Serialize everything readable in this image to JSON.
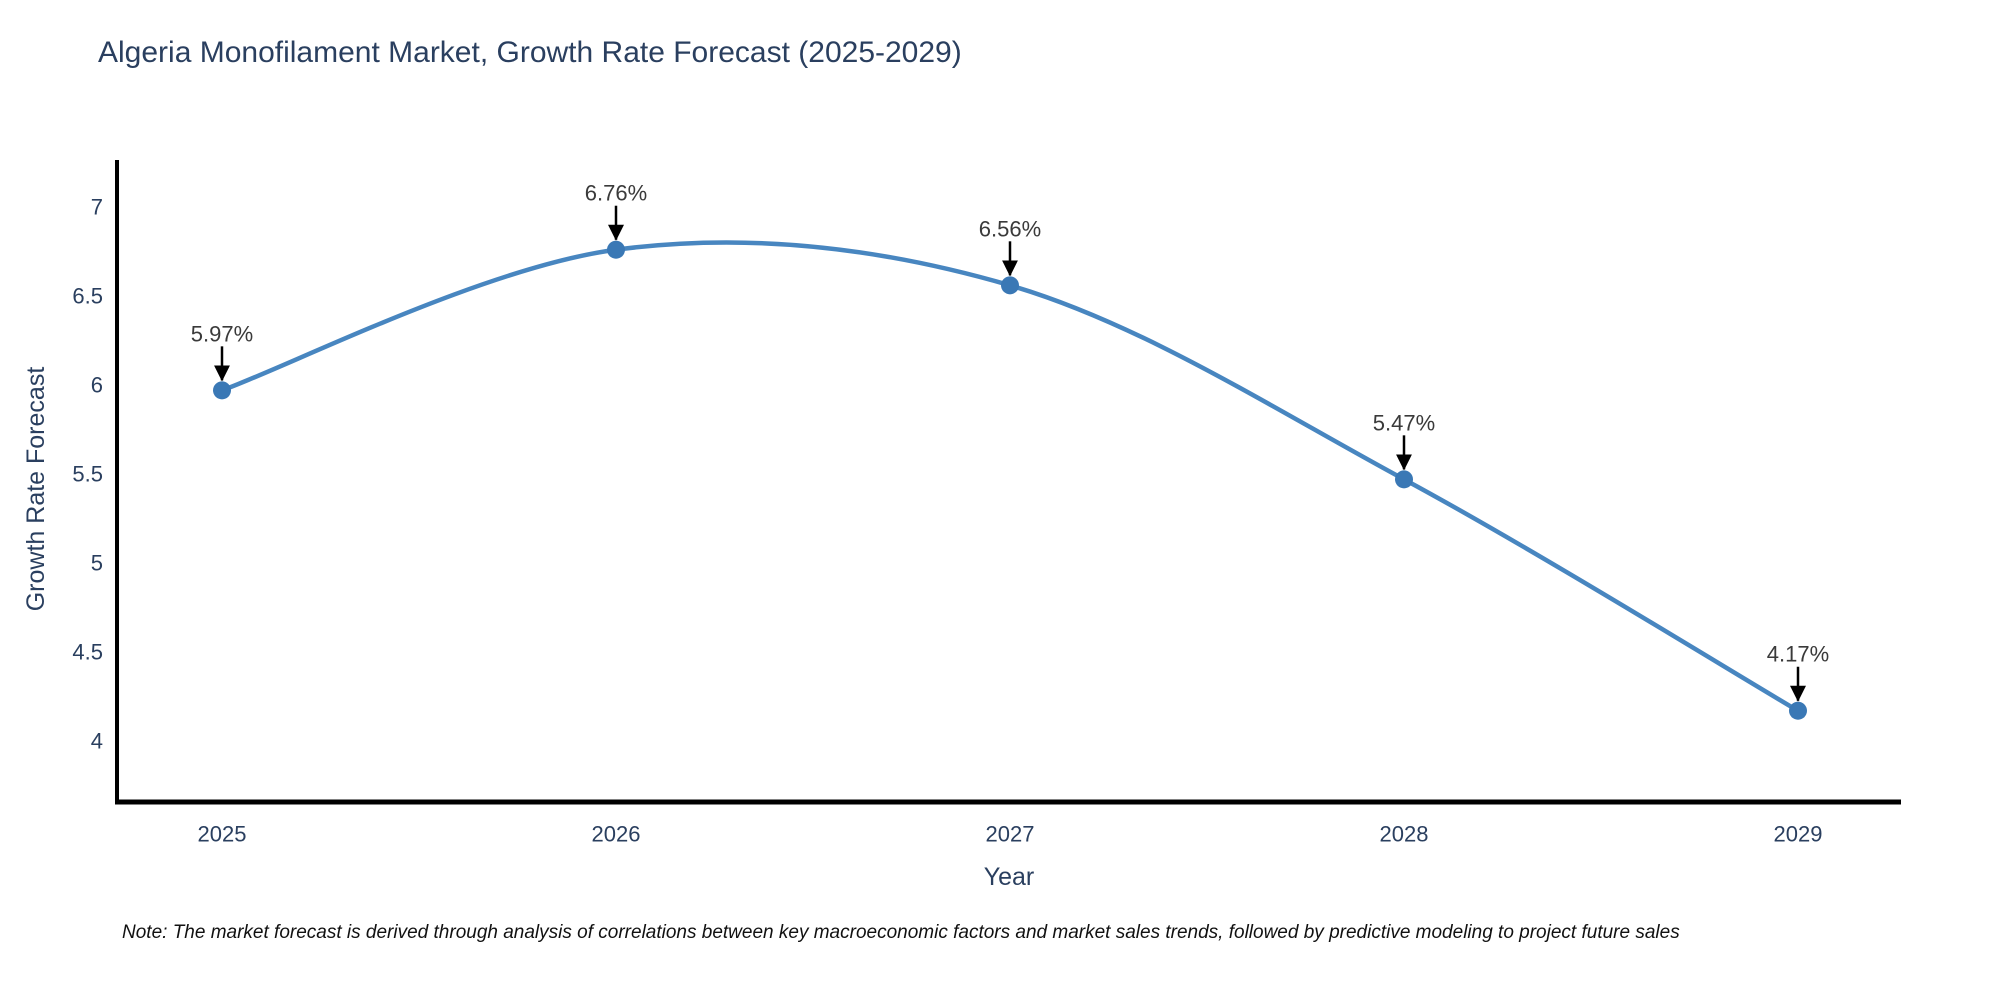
{
  "title": "Algeria Monofilament Market, Growth Rate Forecast (2025-2029)",
  "footnote": "Note: The market forecast is derived through analysis of correlations between key macroeconomic factors and market sales trends, followed by predictive modeling to project future sales",
  "chart_data": {
    "type": "line",
    "line_shape": "spline",
    "title": "Algeria Monofilament Market, Growth Rate Forecast (2025-2029)",
    "xlabel": "Year",
    "ylabel": "Growth Rate Forecast",
    "categories": [
      "2025",
      "2026",
      "2027",
      "2028",
      "2029"
    ],
    "series": [
      {
        "name": "Growth Rate Forecast",
        "values": [
          5.97,
          6.76,
          6.56,
          5.47,
          4.17
        ]
      }
    ],
    "point_labels": [
      "5.97%",
      "6.76%",
      "6.56%",
      "5.47%",
      "4.17%"
    ],
    "yticks": [
      4,
      4.5,
      5,
      5.5,
      6,
      6.5,
      7
    ],
    "ylim": [
      3.66,
      7.27
    ],
    "grid": false,
    "legend": "none",
    "annotation_style": "label-with-down-arrow",
    "colors": {
      "line": "#4886c0",
      "marker": "#3a78b5",
      "axis": "#000000",
      "tick_text": "#2a3f5f",
      "axis_title_text": "#2a3f5f",
      "title_text": "#2a3f5f",
      "annotation_text": "#3a3a3a",
      "arrow": "#000000",
      "background": "#ffffff"
    }
  }
}
